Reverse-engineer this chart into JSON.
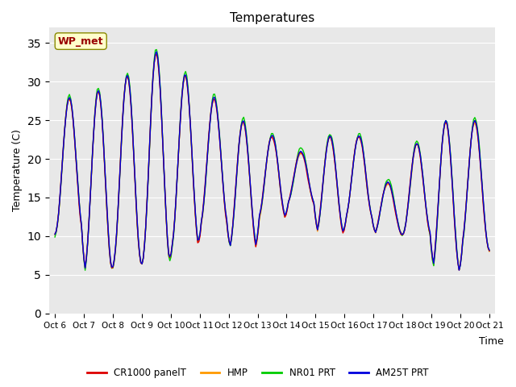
{
  "title": "Temperatures",
  "xlabel": "Time",
  "ylabel": "Temperature (C)",
  "ylim": [
    0,
    37
  ],
  "yticks": [
    0,
    5,
    10,
    15,
    20,
    25,
    30,
    35
  ],
  "x_labels": [
    "Oct 6",
    "Oct 7",
    "Oct 8",
    "Oct 9",
    "Oct 10",
    "Oct 11",
    "Oct 12",
    "Oct 13",
    "Oct 14",
    "Oct 15",
    "Oct 16",
    "Oct 17",
    "Oct 18",
    "Oct 19",
    "Oct 20",
    "Oct 21"
  ],
  "legend_labels": [
    "CR1000 panelT",
    "HMP",
    "NR01 PRT",
    "AM25T PRT"
  ],
  "legend_colors": [
    "#dd0000",
    "#ff9900",
    "#00cc00",
    "#0000dd"
  ],
  "annotation_text": "WP_met",
  "annotation_color": "#990000",
  "annotation_bg": "#ffffcc",
  "bg_color": "#e8e8e8",
  "plot_bg": "#e8e8e8",
  "fig_bg": "#ffffff",
  "n_points": 360,
  "line_width": 1.0
}
